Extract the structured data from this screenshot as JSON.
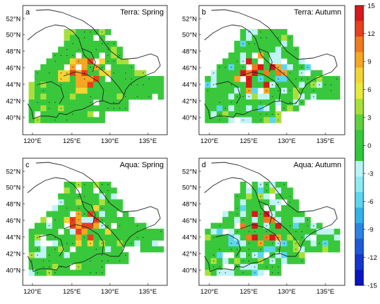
{
  "panels": [
    {
      "letter": "a",
      "title": "Terra: Spring",
      "lat_labels": [
        "52°N",
        "50°N",
        "48°N",
        "46°N",
        "44°N",
        "42°N",
        "40°N"
      ],
      "lon_labels": [
        "120°E",
        "125°E",
        "130°E",
        "135°E"
      ]
    },
    {
      "letter": "b",
      "title": "Terra: Autumn",
      "lat_labels": [
        "52°N",
        "50°N",
        "48°N",
        "46°N",
        "44°N",
        "42°N",
        "40°N"
      ],
      "lon_labels": [
        "120°E",
        "125°E",
        "130°E",
        "135°E"
      ]
    },
    {
      "letter": "c",
      "title": "Aqua: Spring",
      "lat_labels": [
        "52°N",
        "50°N",
        "48°N",
        "46°N",
        "44°N",
        "42°N",
        "40°N"
      ],
      "lon_labels": [
        "120°E",
        "125°E",
        "130°E",
        "135°E"
      ]
    },
    {
      "letter": "d",
      "title": "Aqua: Autumn",
      "lat_labels": [
        "52°N",
        "50°N",
        "48°N",
        "46°N",
        "44°N",
        "42°N",
        "40°N"
      ],
      "lon_labels": [
        "120°E",
        "125°E",
        "130°E",
        "135°E"
      ]
    }
  ],
  "colorbar": {
    "ticks": [
      "15",
      "12",
      "9",
      "6",
      "3",
      "0",
      "-3",
      "-6",
      "-9",
      "-12",
      "-15"
    ],
    "colors": [
      "#d7191c",
      "#e8401c",
      "#f07a1e",
      "#f5a623",
      "#f2d436",
      "#e6ea3c",
      "#a8e03a",
      "#5ed23c",
      "#39c83c",
      "#2fc83a",
      "#b8f5f5",
      "#8eeaf2",
      "#5cd6ef",
      "#34b2ea",
      "#2a84e4",
      "#1e5ad8",
      "#1436cc",
      "#0a14c0"
    ]
  }
}
